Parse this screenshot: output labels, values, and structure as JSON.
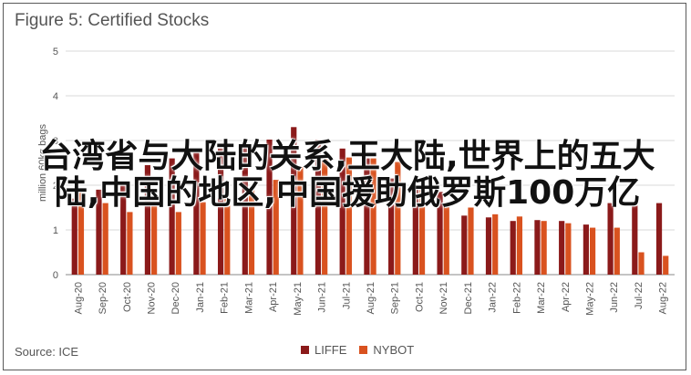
{
  "chart_data": {
    "type": "bar",
    "title": "Figure 5: Certified Stocks",
    "ylabel": "million 60kg bags",
    "xlabel": "",
    "ylim": [
      0,
      5
    ],
    "yticks": [
      0,
      1,
      2,
      3,
      4,
      5
    ],
    "grid": true,
    "legend": "bottom",
    "categories": [
      "Aug-20",
      "Sep-20",
      "Oct-20",
      "Nov-20",
      "Dec-20",
      "Jan-21",
      "Feb-21",
      "Mar-21",
      "Apr-21",
      "May-21",
      "Jun-21",
      "Jul-21",
      "Aug-21",
      "Sep-21",
      "Oct-21",
      "Nov-21",
      "Dec-21",
      "Jan-22",
      "Feb-22",
      "Mar-22",
      "Apr-22",
      "May-22",
      "Jun-22",
      "Jul-22",
      "Aug-22"
    ],
    "series": [
      {
        "name": "LIFFE",
        "color": "#8B1A1A",
        "values": [
          1.7,
          1.9,
          2.05,
          2.45,
          2.6,
          2.75,
          2.82,
          2.95,
          3.02,
          3.3,
          3.02,
          2.82,
          2.6,
          2.15,
          1.95,
          1.85,
          1.32,
          1.28,
          1.2,
          1.22,
          1.2,
          1.12,
          1.6,
          1.6,
          1.6
        ]
      },
      {
        "name": "NYBOT",
        "color": "#D9521F",
        "values": [
          1.9,
          1.6,
          1.4,
          1.6,
          1.4,
          1.62,
          1.7,
          1.95,
          2.12,
          2.4,
          2.62,
          2.62,
          2.6,
          2.52,
          2.0,
          1.62,
          1.5,
          1.35,
          1.3,
          1.2,
          1.15,
          1.05,
          1.05,
          0.5,
          0.42
        ]
      }
    ]
  },
  "overlay_text": "台湾省与大陆的关系,王大陆,世界上的五大陆,中国的地区,中国援助俄罗斯100万亿",
  "source": "Source: ICE"
}
